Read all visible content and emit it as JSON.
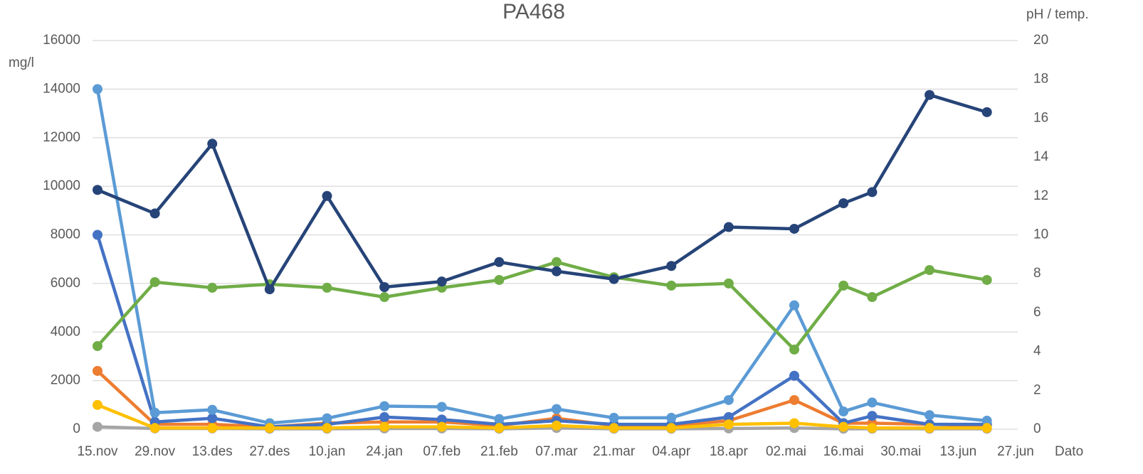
{
  "chart_data": {
    "type": "line",
    "title": "PA468",
    "y_label": "mg/l",
    "y2_label": "pH / temp.",
    "x_label": "Dato",
    "x": [
      0,
      14,
      28,
      42,
      56,
      70,
      84,
      98,
      112,
      126,
      140,
      154,
      170,
      182,
      189,
      203,
      217
    ],
    "xlim": [
      0,
      224
    ],
    "xticks": [
      {
        "value": 0,
        "label": "15.nov"
      },
      {
        "value": 14,
        "label": "29.nov"
      },
      {
        "value": 28,
        "label": "13.des"
      },
      {
        "value": 42,
        "label": "27.des"
      },
      {
        "value": 56,
        "label": "10.jan"
      },
      {
        "value": 70,
        "label": "24.jan"
      },
      {
        "value": 84,
        "label": "07.feb"
      },
      {
        "value": 98,
        "label": "21.feb"
      },
      {
        "value": 112,
        "label": "07.mar"
      },
      {
        "value": 126,
        "label": "21.mar"
      },
      {
        "value": 140,
        "label": "04.apr"
      },
      {
        "value": 154,
        "label": "18.apr"
      },
      {
        "value": 168,
        "label": "02.mai"
      },
      {
        "value": 182,
        "label": "16.mai"
      },
      {
        "value": 196,
        "label": "30.mai"
      },
      {
        "value": 210,
        "label": "13.jun"
      },
      {
        "value": 224,
        "label": "27.jun"
      }
    ],
    "ylim": [
      0,
      16000
    ],
    "yticks": [
      0,
      2000,
      4000,
      6000,
      8000,
      10000,
      12000,
      14000,
      16000
    ],
    "y2lim": [
      0,
      20
    ],
    "y2ticks": [
      0,
      2,
      4,
      6,
      8,
      10,
      12,
      14,
      16,
      18,
      20
    ],
    "grid": true,
    "series": [
      {
        "color": "#a5a5a5",
        "values": [
          100,
          30,
          30,
          20,
          20,
          30,
          30,
          20,
          50,
          20,
          20,
          30,
          50,
          20,
          20,
          20,
          20
        ]
      },
      {
        "color": "#ed7d31",
        "values": [
          2400,
          200,
          200,
          100,
          250,
          300,
          300,
          150,
          450,
          150,
          150,
          350,
          1200,
          250,
          250,
          200,
          150
        ]
      },
      {
        "color": "#4472c4",
        "values": [
          8000,
          300,
          450,
          100,
          200,
          500,
          400,
          200,
          350,
          200,
          200,
          500,
          2200,
          250,
          550,
          200,
          200
        ]
      },
      {
        "color": "#5b9bd5",
        "values": [
          14000,
          680,
          800,
          250,
          450,
          950,
          920,
          420,
          830,
          470,
          470,
          1200,
          5100,
          730,
          1100,
          580,
          350
        ]
      },
      {
        "color": "#70ad47",
        "axis": "y2",
        "values": [
          4.28,
          7.57,
          7.28,
          7.46,
          7.28,
          6.8,
          7.28,
          7.68,
          8.6,
          7.82,
          7.39,
          7.5,
          4.1,
          7.39,
          6.8,
          8.19,
          7.68
        ]
      },
      {
        "color": "#264478",
        "values": [
          9850,
          8880,
          11750,
          5760,
          9600,
          5850,
          6080,
          6880,
          6500,
          6180,
          6720,
          8320,
          8250,
          9300,
          9760,
          13760,
          13050
        ]
      },
      {
        "color": "#ffc000",
        "values": [
          1000,
          50,
          50,
          50,
          50,
          100,
          100,
          50,
          150,
          50,
          50,
          200,
          250,
          100,
          50,
          50,
          50
        ]
      }
    ]
  }
}
